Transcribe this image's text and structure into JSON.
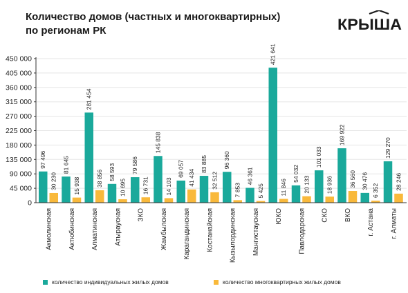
{
  "title": {
    "line1": "Количество домов (частных и многоквартирных)",
    "line2": "по регионам РК"
  },
  "logo": {
    "text": "КРЫША",
    "color": "#1a1a1a"
  },
  "colors": {
    "individual": "#1aa99b",
    "apartment": "#f9b93b",
    "axis": "#333333",
    "grid": "#e5e5e5"
  },
  "chart_data": {
    "type": "bar",
    "categories": [
      "Акмолинская",
      "Актюбинская",
      "Алматинская",
      "Атырауская",
      "ЗКО",
      "Жамбылская",
      "Карагандинская",
      "Костанайская",
      "Кызылординская",
      "Мангистауская",
      "ЮКО",
      "Павлодарская",
      "СКО",
      "ВКО",
      "г. Астана",
      "г. Алматы"
    ],
    "series": [
      {
        "name": "количество индивидуальных жилых домов",
        "values": [
          97496,
          81645,
          281454,
          58593,
          79586,
          145838,
          69057,
          83885,
          96360,
          46361,
          421641,
          54032,
          101033,
          169922,
          30476,
          129270
        ],
        "labels": [
          "97 496",
          "81 645",
          "281 454",
          "58 593",
          "79 586",
          "145 838",
          "69 057",
          "83 885",
          "96 360",
          "46 361",
          "421 641",
          "54 032",
          "101 033",
          "169 922",
          "30 476",
          "129 270"
        ]
      },
      {
        "name": "количество многоквартирных жилых домов",
        "values": [
          30230,
          15938,
          38856,
          10695,
          16731,
          14103,
          41434,
          32512,
          7853,
          5425,
          11846,
          20133,
          18936,
          36560,
          6352,
          28246
        ],
        "labels": [
          "30 230",
          "15 938",
          "38 856",
          "10 695",
          "16 731",
          "14 103",
          "41 434",
          "32 512",
          "7 853",
          "5 425",
          "11 846",
          "20 133",
          "18 936",
          "36 560",
          "6 352",
          "28 246"
        ]
      }
    ],
    "yticks": [
      "0",
      "45 000",
      "90 000",
      "135 000",
      "180 000",
      "225 000",
      "270 000",
      "315 000",
      "360 000",
      "405 000",
      "450 000"
    ],
    "ylim": [
      0,
      450000
    ],
    "ystep": 45000,
    "xlabel": "",
    "ylabel": "",
    "legend_position": "bottom",
    "grid": true
  }
}
